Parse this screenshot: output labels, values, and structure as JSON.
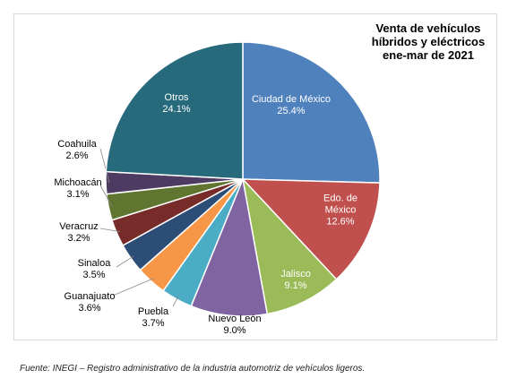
{
  "chart_data": {
    "type": "pie",
    "title": "Venta de vehículos híbridos y eléctricos ene-mar de 2021",
    "categories": [
      "Ciudad de México",
      "Edo. de México",
      "Jalisco",
      "Nuevo León",
      "Puebla",
      "Guanajuato",
      "Sinaloa",
      "Veracruz",
      "Michoacán",
      "Coahuila",
      "Otros"
    ],
    "values": [
      25.4,
      12.6,
      9.1,
      9.0,
      3.7,
      3.6,
      3.5,
      3.2,
      3.1,
      2.6,
      24.1
    ],
    "value_labels": [
      "25.4%",
      "12.6%",
      "9.1%",
      "9.0%",
      "3.7%",
      "3.6%",
      "3.5%",
      "3.2%",
      "3.1%",
      "2.6%",
      "24.1%"
    ],
    "colors": [
      "#4f81bd",
      "#c0504d",
      "#9bbb59",
      "#8064a2",
      "#4bacc6",
      "#f79646",
      "#2c4d75",
      "#772c2a",
      "#5f7530",
      "#4d3b62",
      "#276a7c"
    ],
    "source": "Fuente: INEGI – Registro administrativo de la industria automotriz de vehículos ligeros."
  }
}
